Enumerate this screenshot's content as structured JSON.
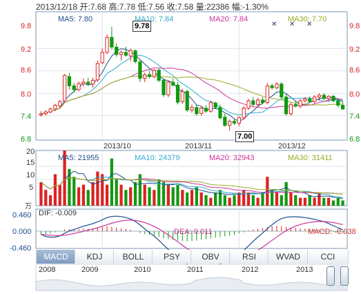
{
  "header": {
    "date": "2013/12/18",
    "open_label": "开:",
    "open": "7.68",
    "high_label": "高:",
    "high": "7.78",
    "low_label": "低:",
    "low": "7.56",
    "close_label": "收:",
    "close": "7.58",
    "volume_label": "量:",
    "volume": "22386",
    "change_label": "幅:",
    "change": "-1.30%"
  },
  "price_panel": {
    "ma_legend": [
      {
        "label": "MA5: 7.80",
        "color": "#1a4c8c"
      },
      {
        "label": "MA10: 7.84",
        "color": "#33aacc"
      },
      {
        "label": "MA20: 7.84",
        "color": "#cc3399"
      },
      {
        "label": "MA30: 7.70",
        "color": "#99aa22"
      }
    ],
    "y_ticks": [
      "9.8",
      "9.2",
      "8.6",
      "8.0",
      "7.4",
      "6.8"
    ],
    "x_ticks": [
      "2013/10",
      "2013/11",
      "2013/12"
    ],
    "max_label": "9.78",
    "min_label": "7.00"
  },
  "volume_panel": {
    "ma_legend": [
      {
        "label": "MA5: 21955",
        "color": "#1a4c8c"
      },
      {
        "label": "MA10: 24379",
        "color": "#33aacc"
      },
      {
        "label": "MA20: 32943",
        "color": "#cc3399"
      },
      {
        "label": "MA30: 31411",
        "color": "#99aa22"
      }
    ],
    "y_ticks": [
      "20",
      "15",
      "10",
      "5"
    ],
    "unit": "万"
  },
  "macd_panel": {
    "dif_label": "DIF: -0.009",
    "dea_label": "DEA: 0.011",
    "macd_label": "MACD: -0.038",
    "y_ticks": [
      "0.460",
      "0.000",
      "-0.460"
    ]
  },
  "tabs": [
    "MACD",
    "KDJ",
    "BOLL",
    "PSY",
    "OBV",
    "RSI",
    "WVAD",
    "CCI"
  ],
  "active_tab": "MACD",
  "timeline": {
    "years": [
      "2008",
      "2009",
      "2010",
      "2011",
      "2012",
      "2013"
    ]
  },
  "colors": {
    "up": "#dd2222",
    "down": "#119911",
    "grid": "#dde3ea",
    "axis": "#7f95ae"
  },
  "chart_data": {
    "type": "candlestick",
    "title": "",
    "y_range": [
      6.8,
      9.8
    ],
    "x_labels": [
      "2013/10",
      "2013/11",
      "2013/12"
    ],
    "x_label_index": [
      13,
      42,
      70
    ],
    "candles": [
      {
        "o": 7.42,
        "h": 7.52,
        "l": 7.38,
        "c": 7.45
      },
      {
        "o": 7.45,
        "h": 7.55,
        "l": 7.4,
        "c": 7.5
      },
      {
        "o": 7.5,
        "h": 7.62,
        "l": 7.46,
        "c": 7.58
      },
      {
        "o": 7.58,
        "h": 7.72,
        "l": 7.52,
        "c": 7.68
      },
      {
        "o": 7.66,
        "h": 7.82,
        "l": 7.6,
        "c": 7.78
      },
      {
        "o": 7.8,
        "h": 8.52,
        "l": 7.76,
        "c": 8.48
      },
      {
        "o": 8.45,
        "h": 8.55,
        "l": 8.1,
        "c": 8.2
      },
      {
        "o": 8.2,
        "h": 8.28,
        "l": 8.02,
        "c": 8.1
      },
      {
        "o": 8.1,
        "h": 8.32,
        "l": 8.05,
        "c": 8.26
      },
      {
        "o": 8.26,
        "h": 8.4,
        "l": 8.18,
        "c": 8.3
      },
      {
        "o": 8.3,
        "h": 8.42,
        "l": 8.2,
        "c": 8.25
      },
      {
        "o": 8.25,
        "h": 8.42,
        "l": 8.15,
        "c": 8.35
      },
      {
        "o": 8.36,
        "h": 8.88,
        "l": 8.3,
        "c": 8.8
      },
      {
        "o": 8.82,
        "h": 9.2,
        "l": 8.78,
        "c": 9.1
      },
      {
        "o": 9.1,
        "h": 9.58,
        "l": 9.05,
        "c": 9.5
      },
      {
        "o": 9.5,
        "h": 9.78,
        "l": 9.18,
        "c": 9.24
      },
      {
        "o": 9.24,
        "h": 9.34,
        "l": 8.98,
        "c": 9.04
      },
      {
        "o": 9.04,
        "h": 9.15,
        "l": 8.88,
        "c": 9.1
      },
      {
        "o": 9.1,
        "h": 9.25,
        "l": 8.98,
        "c": 9.02
      },
      {
        "o": 9.0,
        "h": 9.2,
        "l": 8.86,
        "c": 9.15
      },
      {
        "o": 9.14,
        "h": 9.18,
        "l": 8.8,
        "c": 8.85
      },
      {
        "o": 8.84,
        "h": 8.9,
        "l": 8.3,
        "c": 8.4
      },
      {
        "o": 8.4,
        "h": 8.55,
        "l": 8.3,
        "c": 8.5
      },
      {
        "o": 8.5,
        "h": 8.6,
        "l": 8.4,
        "c": 8.45
      },
      {
        "o": 8.45,
        "h": 8.65,
        "l": 8.4,
        "c": 8.62
      },
      {
        "o": 8.62,
        "h": 8.68,
        "l": 8.3,
        "c": 8.35
      },
      {
        "o": 8.35,
        "h": 8.4,
        "l": 7.9,
        "c": 7.96
      },
      {
        "o": 7.96,
        "h": 8.35,
        "l": 7.9,
        "c": 8.3
      },
      {
        "o": 8.3,
        "h": 8.4,
        "l": 8.18,
        "c": 8.22
      },
      {
        "o": 8.22,
        "h": 8.3,
        "l": 7.7,
        "c": 7.76
      },
      {
        "o": 7.78,
        "h": 8.12,
        "l": 7.72,
        "c": 8.05
      },
      {
        "o": 8.05,
        "h": 8.1,
        "l": 7.5,
        "c": 7.55
      },
      {
        "o": 7.55,
        "h": 7.7,
        "l": 7.48,
        "c": 7.62
      },
      {
        "o": 7.62,
        "h": 7.7,
        "l": 7.4,
        "c": 7.45
      },
      {
        "o": 7.46,
        "h": 7.66,
        "l": 7.4,
        "c": 7.6
      },
      {
        "o": 7.6,
        "h": 7.68,
        "l": 7.48,
        "c": 7.52
      },
      {
        "o": 7.52,
        "h": 7.8,
        "l": 7.48,
        "c": 7.75
      },
      {
        "o": 7.74,
        "h": 7.78,
        "l": 7.58,
        "c": 7.62
      },
      {
        "o": 7.62,
        "h": 7.7,
        "l": 7.3,
        "c": 7.34
      },
      {
        "o": 7.36,
        "h": 7.45,
        "l": 7.1,
        "c": 7.14
      },
      {
        "o": 7.14,
        "h": 7.3,
        "l": 7.0,
        "c": 7.25
      },
      {
        "o": 7.25,
        "h": 7.3,
        "l": 7.15,
        "c": 7.2
      },
      {
        "o": 7.2,
        "h": 7.38,
        "l": 7.12,
        "c": 7.35
      },
      {
        "o": 7.34,
        "h": 7.65,
        "l": 7.3,
        "c": 7.6
      },
      {
        "o": 7.6,
        "h": 7.85,
        "l": 7.55,
        "c": 7.8
      },
      {
        "o": 7.8,
        "h": 7.9,
        "l": 7.65,
        "c": 7.7
      },
      {
        "o": 7.7,
        "h": 7.88,
        "l": 7.62,
        "c": 7.82
      },
      {
        "o": 7.82,
        "h": 7.9,
        "l": 7.7,
        "c": 7.75
      },
      {
        "o": 7.75,
        "h": 8.28,
        "l": 7.7,
        "c": 8.2
      },
      {
        "o": 8.2,
        "h": 8.26,
        "l": 8.1,
        "c": 8.15
      },
      {
        "o": 8.15,
        "h": 8.3,
        "l": 8.1,
        "c": 8.25
      },
      {
        "o": 8.25,
        "h": 8.3,
        "l": 7.85,
        "c": 7.9
      },
      {
        "o": 7.9,
        "h": 8.0,
        "l": 7.4,
        "c": 7.45
      },
      {
        "o": 7.45,
        "h": 7.75,
        "l": 7.4,
        "c": 7.7
      },
      {
        "o": 7.7,
        "h": 7.78,
        "l": 7.62,
        "c": 7.66
      },
      {
        "o": 7.66,
        "h": 7.85,
        "l": 7.6,
        "c": 7.8
      },
      {
        "o": 7.8,
        "h": 7.9,
        "l": 7.75,
        "c": 7.85
      },
      {
        "o": 7.85,
        "h": 7.92,
        "l": 7.74,
        "c": 7.78
      },
      {
        "o": 7.78,
        "h": 7.95,
        "l": 7.72,
        "c": 7.9
      },
      {
        "o": 7.9,
        "h": 8.0,
        "l": 7.8,
        "c": 7.95
      },
      {
        "o": 7.95,
        "h": 8.0,
        "l": 7.82,
        "c": 7.86
      },
      {
        "o": 7.86,
        "h": 7.95,
        "l": 7.78,
        "c": 7.92
      },
      {
        "o": 7.92,
        "h": 7.96,
        "l": 7.76,
        "c": 7.8
      },
      {
        "o": 7.8,
        "h": 7.88,
        "l": 7.62,
        "c": 7.68
      },
      {
        "o": 7.68,
        "h": 7.78,
        "l": 7.56,
        "c": 7.58
      }
    ],
    "volume": [
      9,
      6,
      4,
      12,
      8,
      21,
      14,
      11,
      7,
      8,
      6,
      9,
      13,
      12,
      8,
      18,
      10,
      8,
      6,
      7,
      9,
      12,
      8,
      7,
      6,
      10,
      9,
      8,
      7,
      8,
      6,
      5,
      6,
      7,
      5,
      4,
      3,
      5,
      6,
      4,
      3,
      4,
      5,
      6,
      5,
      4,
      3,
      5,
      11,
      6,
      5,
      4,
      9,
      5,
      4,
      3,
      3,
      4,
      3,
      5,
      3,
      3,
      2,
      3,
      2
    ],
    "macd_hist": [
      -0.1,
      -0.08,
      -0.06,
      -0.03,
      0.0,
      0.05,
      0.06,
      0.05,
      0.06,
      0.07,
      0.07,
      0.08,
      0.1,
      0.12,
      0.14,
      0.12,
      0.1,
      0.08,
      0.06,
      0.04,
      0.0,
      -0.05,
      -0.08,
      -0.1,
      -0.12,
      -0.16,
      -0.2,
      -0.22,
      -0.24,
      -0.26,
      -0.27,
      -0.28,
      -0.27,
      -0.26,
      -0.24,
      -0.22,
      -0.2,
      -0.18,
      -0.16,
      -0.14,
      -0.12,
      -0.1,
      -0.06,
      -0.03,
      0.02,
      0.05,
      0.07,
      0.09,
      0.12,
      0.14,
      0.15,
      0.14,
      0.12,
      0.1,
      0.09,
      0.08,
      0.07,
      0.06,
      0.05,
      0.04,
      0.03,
      0.0,
      -0.02,
      -0.03,
      -0.04
    ],
    "macd_range": [
      -0.46,
      0.46
    ]
  }
}
